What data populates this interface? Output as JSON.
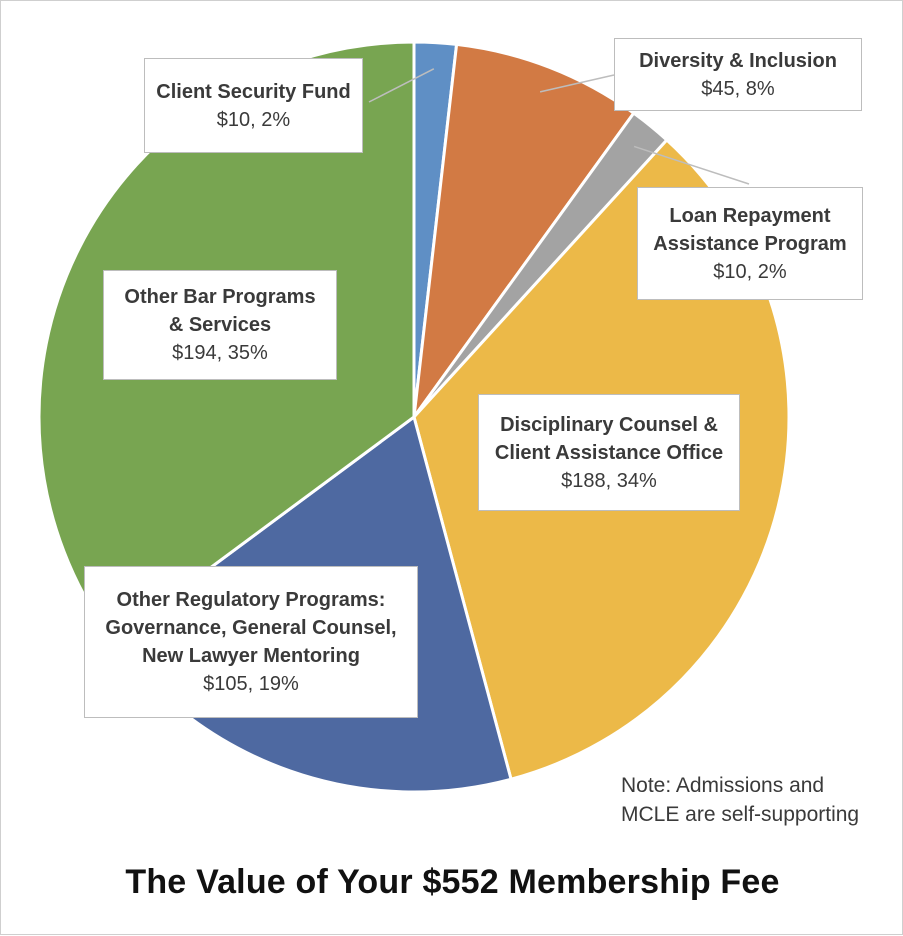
{
  "chart_data": {
    "type": "pie",
    "title": "The Value of Your $552 Membership Fee",
    "start_angle_deg": 0,
    "direction": "clockwise",
    "slices": [
      {
        "name": "Client Security Fund",
        "amount": 10,
        "value_label": "$10, 2%",
        "color": "#5f8fc5"
      },
      {
        "name": "Diversity & Inclusion",
        "amount": 45,
        "value_label": "$45, 8%",
        "color": "#d27a44"
      },
      {
        "name": "Loan Repayment\nAssistance Program",
        "amount": 10,
        "value_label": "$10, 2%",
        "color": "#a3a3a3"
      },
      {
        "name": "Disciplinary Counsel &\nClient Assistance Office",
        "amount": 188,
        "value_label": "$188, 34%",
        "color": "#ecb948"
      },
      {
        "name": "Other Regulatory Programs:\nGovernance, General Counsel,\nNew Lawyer Mentoring",
        "amount": 105,
        "value_label": "$105, 19%",
        "color": "#4e69a1"
      },
      {
        "name": "Other Bar Programs\n& Services",
        "amount": 194,
        "value_label": "$194, 35%",
        "color": "#78a551"
      }
    ],
    "note": [
      "Note: Admissions and",
      "MCLE are self-supporting"
    ]
  }
}
